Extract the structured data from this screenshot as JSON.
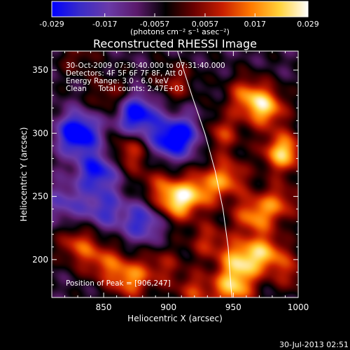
{
  "colorbar": {
    "gradient": [
      "#0000ff",
      "#3a2cc8",
      "#6a3aa8",
      "#5a1a6a",
      "#000000",
      "#6a0000",
      "#c81e00",
      "#ff7a00",
      "#ffd23a",
      "#ffffff"
    ],
    "tick_labels": [
      "-0.029",
      "-0.017",
      "-0.0057",
      "0.0057",
      "0.017",
      "0.029"
    ],
    "tick_values": [
      -0.029,
      -0.017,
      -0.0057,
      0.0057,
      0.017,
      0.029
    ],
    "vmin": -0.029,
    "vmax": 0.029,
    "units_label": "(photons cm⁻² s⁻¹ asec⁻²)"
  },
  "chart_data": {
    "type": "heatmap",
    "title": "Reconstructed RHESSI Image",
    "xlabel": "Heliocentric X (arcsec)",
    "ylabel": "Heliocentric Y (arcsec)",
    "xlim": [
      810,
      1000
    ],
    "ylim": [
      170,
      365
    ],
    "x_ticks": [
      850,
      900,
      950,
      1000
    ],
    "y_ticks": [
      200,
      250,
      300,
      350
    ],
    "info_lines": [
      "30-Oct-2009 07:30:40.000 to 07:31:40.000",
      "Detectors: 4F 5F 6F 7F 8F, Att 0",
      "Energy Range: 3.0 - 6.0 keV",
      "Clean     Total counts: 2.47E+03"
    ],
    "peak_annotation": "Position of Peak = [906,247]",
    "peak_position": [
      906,
      247
    ],
    "limb_curve": [
      [
        906,
        368
      ],
      [
        918,
        330
      ],
      [
        928,
        300
      ],
      [
        936,
        270
      ],
      [
        942,
        240
      ],
      [
        946,
        210
      ],
      [
        948,
        180
      ],
      [
        949,
        170
      ]
    ],
    "emission_sources": [
      {
        "x": 988,
        "y": 285,
        "v": 0.029
      },
      {
        "x": 975,
        "y": 320,
        "v": 0.025
      },
      {
        "x": 960,
        "y": 330,
        "v": 0.018
      },
      {
        "x": 940,
        "y": 300,
        "v": 0.016
      },
      {
        "x": 906,
        "y": 247,
        "v": 0.029
      },
      {
        "x": 925,
        "y": 255,
        "v": 0.018
      },
      {
        "x": 945,
        "y": 265,
        "v": 0.02
      },
      {
        "x": 965,
        "y": 235,
        "v": 0.021
      },
      {
        "x": 985,
        "y": 245,
        "v": 0.017
      },
      {
        "x": 955,
        "y": 200,
        "v": 0.024
      },
      {
        "x": 975,
        "y": 205,
        "v": 0.022
      },
      {
        "x": 950,
        "y": 178,
        "v": 0.026
      },
      {
        "x": 930,
        "y": 215,
        "v": 0.014
      },
      {
        "x": 870,
        "y": 185,
        "v": 0.022
      },
      {
        "x": 850,
        "y": 198,
        "v": 0.016
      },
      {
        "x": 830,
        "y": 212,
        "v": 0.017
      },
      {
        "x": 895,
        "y": 195,
        "v": 0.012
      },
      {
        "x": 890,
        "y": 260,
        "v": 0.01
      },
      {
        "x": 870,
        "y": 285,
        "v": 0.016
      },
      {
        "x": 855,
        "y": 330,
        "v": 0.011
      },
      {
        "x": 905,
        "y": 340,
        "v": 0.012
      },
      {
        "x": 830,
        "y": 360,
        "v": 0.008
      },
      {
        "x": 995,
        "y": 190,
        "v": 0.012
      },
      {
        "x": 920,
        "y": 175,
        "v": 0.015
      }
    ],
    "negative_sources": [
      {
        "x": 830,
        "y": 300,
        "v": -0.03
      },
      {
        "x": 845,
        "y": 270,
        "v": -0.022
      },
      {
        "x": 875,
        "y": 315,
        "v": -0.026
      },
      {
        "x": 900,
        "y": 295,
        "v": -0.022
      },
      {
        "x": 880,
        "y": 230,
        "v": -0.018
      },
      {
        "x": 915,
        "y": 300,
        "v": -0.014
      },
      {
        "x": 850,
        "y": 240,
        "v": -0.015
      },
      {
        "x": 820,
        "y": 245,
        "v": -0.012
      }
    ],
    "background_level": -0.006
  },
  "footer": {
    "timestamp": "30-Jul-2013 02:51"
  }
}
